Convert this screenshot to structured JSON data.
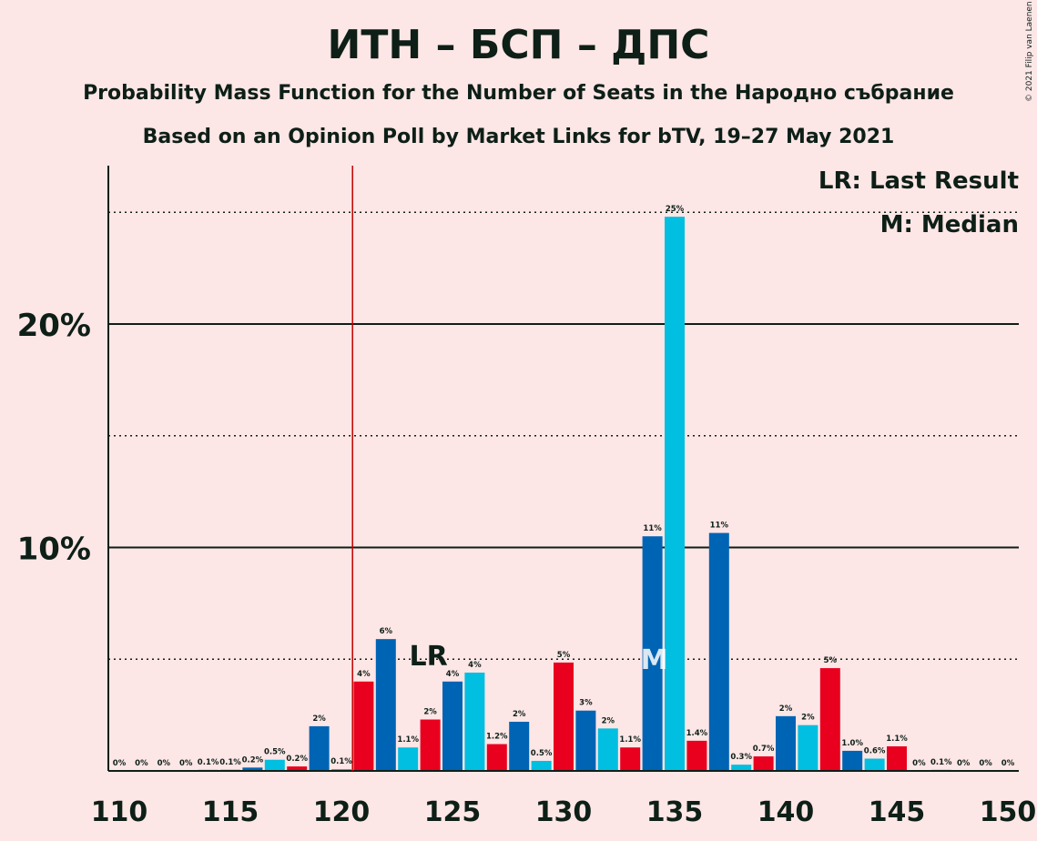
{
  "title": "ИТН – БСП – ДПС",
  "subtitle": "Probability Mass Function for the Number of Seats in the Народно събрание",
  "source": "Based on an Opinion Poll by Market Links for bTV, 19–27 May 2021",
  "copyright": "© 2021 Filip van Laenen",
  "legend": {
    "last_result": "LR: Last Result",
    "median": "M: Median"
  },
  "colors": {
    "background": "#fde6e6",
    "party_blue": "#0064b4",
    "party_cyan": "#00bfe0",
    "party_red": "#e8001e",
    "last_result_line": "#c00000",
    "text": "#0d1f17"
  },
  "chart_data": {
    "type": "bar",
    "xlim": [
      110,
      150
    ],
    "ylim": [
      0,
      27
    ],
    "x_ticks": [
      110,
      115,
      120,
      125,
      130,
      135,
      140,
      145,
      150
    ],
    "x_tick_labels": [
      "110",
      "115",
      "120",
      "125",
      "130",
      "135",
      "140",
      "145",
      "150"
    ],
    "y_ticks": [
      10,
      20
    ],
    "y_tick_labels": [
      "10%",
      "20%"
    ],
    "major_grid": [
      10,
      20
    ],
    "minor_grid": [
      5,
      15,
      25
    ],
    "last_result": 121,
    "last_result_label": "LR",
    "last_result_label_seat": 124,
    "median": 134,
    "median_label": "M",
    "bars": [
      {
        "seat": 110,
        "value": 0,
        "label": "0%",
        "color": "blue"
      },
      {
        "seat": 111,
        "value": 0,
        "label": "0%",
        "color": "cyan"
      },
      {
        "seat": 112,
        "value": 0,
        "label": "0%",
        "color": "red"
      },
      {
        "seat": 113,
        "value": 0,
        "label": "0%",
        "color": "blue"
      },
      {
        "seat": 114,
        "value": 0.05,
        "label": "0.1%",
        "color": "cyan"
      },
      {
        "seat": 115,
        "value": 0.05,
        "label": "0.1%",
        "color": "red"
      },
      {
        "seat": 116,
        "value": 0.15,
        "label": "0.2%",
        "color": "blue"
      },
      {
        "seat": 117,
        "value": 0.5,
        "label": "0.5%",
        "color": "cyan"
      },
      {
        "seat": 118,
        "value": 0.2,
        "label": "0.2%",
        "color": "red"
      },
      {
        "seat": 119,
        "value": 2.0,
        "label": "2%",
        "color": "blue"
      },
      {
        "seat": 120,
        "value": 0.08,
        "label": "0.1%",
        "color": "cyan"
      },
      {
        "seat": 121,
        "value": 4.0,
        "label": "4%",
        "color": "red"
      },
      {
        "seat": 122,
        "value": 5.9,
        "label": "6%",
        "color": "blue"
      },
      {
        "seat": 123,
        "value": 1.05,
        "label": "1.1%",
        "color": "cyan"
      },
      {
        "seat": 124,
        "value": 2.3,
        "label": "2%",
        "color": "red"
      },
      {
        "seat": 125,
        "value": 4.0,
        "label": "4%",
        "color": "blue"
      },
      {
        "seat": 126,
        "value": 4.4,
        "label": "4%",
        "color": "cyan"
      },
      {
        "seat": 127,
        "value": 1.2,
        "label": "1.2%",
        "color": "red"
      },
      {
        "seat": 128,
        "value": 2.2,
        "label": "2%",
        "color": "blue"
      },
      {
        "seat": 129,
        "value": 0.45,
        "label": "0.5%",
        "color": "cyan"
      },
      {
        "seat": 130,
        "value": 4.85,
        "label": "5%",
        "color": "red"
      },
      {
        "seat": 131,
        "value": 2.7,
        "label": "3%",
        "color": "blue"
      },
      {
        "seat": 132,
        "value": 1.9,
        "label": "2%",
        "color": "cyan"
      },
      {
        "seat": 133,
        "value": 1.05,
        "label": "1.1%",
        "color": "red"
      },
      {
        "seat": 134,
        "value": 10.5,
        "label": "11%",
        "color": "blue"
      },
      {
        "seat": 135,
        "value": 24.8,
        "label": "25%",
        "color": "cyan"
      },
      {
        "seat": 136,
        "value": 1.35,
        "label": "1.4%",
        "color": "red"
      },
      {
        "seat": 137,
        "value": 10.65,
        "label": "11%",
        "color": "blue"
      },
      {
        "seat": 138,
        "value": 0.28,
        "label": "0.3%",
        "color": "cyan"
      },
      {
        "seat": 139,
        "value": 0.65,
        "label": "0.7%",
        "color": "red"
      },
      {
        "seat": 140,
        "value": 2.45,
        "label": "2%",
        "color": "blue"
      },
      {
        "seat": 141,
        "value": 2.05,
        "label": "2%",
        "color": "cyan"
      },
      {
        "seat": 142,
        "value": 4.6,
        "label": "5%",
        "color": "red"
      },
      {
        "seat": 143,
        "value": 0.9,
        "label": "1.0%",
        "color": "blue"
      },
      {
        "seat": 144,
        "value": 0.55,
        "label": "0.6%",
        "color": "cyan"
      },
      {
        "seat": 145,
        "value": 1.1,
        "label": "1.1%",
        "color": "red"
      },
      {
        "seat": 146,
        "value": 0,
        "label": "0%",
        "color": "blue"
      },
      {
        "seat": 147,
        "value": 0.05,
        "label": "0.1%",
        "color": "cyan"
      },
      {
        "seat": 148,
        "value": 0,
        "label": "0%",
        "color": "red"
      },
      {
        "seat": 149,
        "value": 0,
        "label": "0%",
        "color": "blue"
      },
      {
        "seat": 150,
        "value": 0,
        "label": "0%",
        "color": "cyan"
      }
    ]
  }
}
